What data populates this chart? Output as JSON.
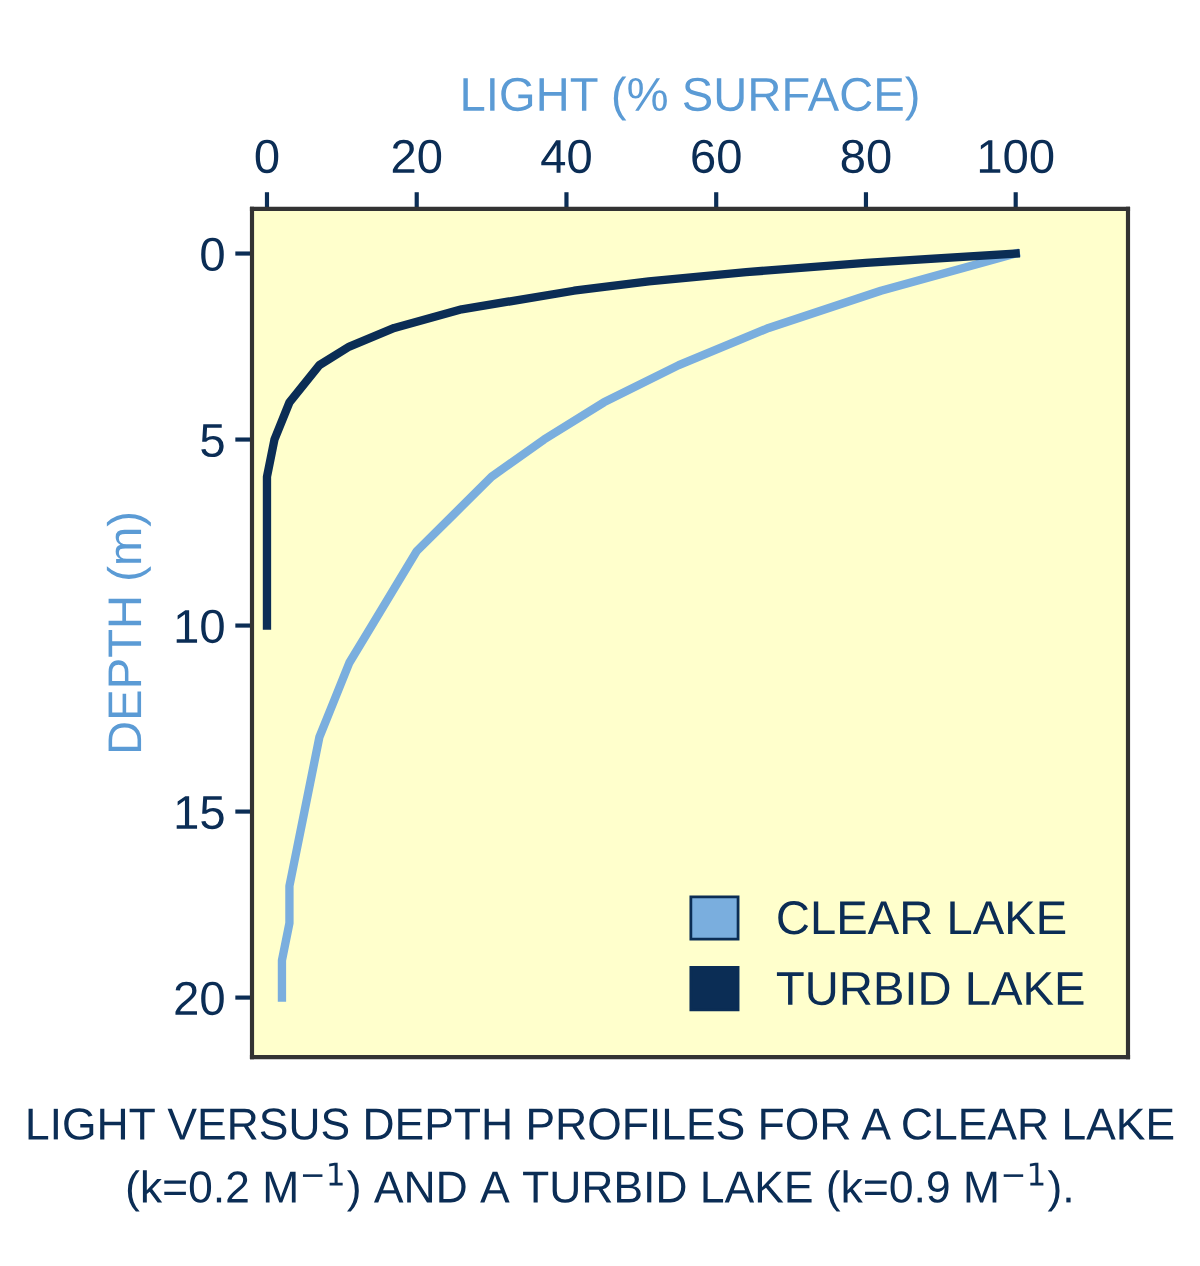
{
  "chart_data": {
    "type": "line",
    "xlabel": "LIGHT (% SURFACE)",
    "ylabel": "DEPTH (m)",
    "xlim": [
      -2,
      115
    ],
    "xticks": [
      0,
      20,
      40,
      60,
      80,
      100
    ],
    "ylim": [
      21.6,
      -1.2
    ],
    "yticks": [
      0,
      5,
      10,
      15,
      20
    ],
    "series": [
      {
        "name": "CLEAR LAKE",
        "color": "#7aaede",
        "x": [
          100,
          82,
          67,
          55,
          45,
          37,
          30,
          25,
          20,
          17,
          14,
          11,
          9,
          7,
          6,
          5,
          4,
          3,
          3,
          2,
          2
        ],
        "values": [
          0,
          1,
          2,
          3,
          4,
          5,
          6,
          7,
          8,
          9,
          10,
          11,
          12,
          13,
          14,
          15,
          16,
          17,
          18,
          19,
          20
        ]
      },
      {
        "name": "TURBID LAKE",
        "color": "#0b2d55",
        "x": [
          100,
          80,
          64,
          51,
          41,
          26,
          17,
          11,
          7,
          3,
          1,
          0,
          0,
          0
        ],
        "values": [
          0,
          0.25,
          0.5,
          0.75,
          1,
          1.5,
          2,
          2.5,
          3,
          4,
          5,
          6,
          8,
          10
        ]
      }
    ],
    "legend": "bottom right",
    "grid": false,
    "marker": "none",
    "line_style": "solid",
    "annotations": [
      "LIGHT VERSUS DEPTH PROFILES FOR A CLEAR LAKE",
      "(k=0.2 M$^{−1}$) AND A TURBID LAKE (k=0.9 M$^{−1}$)."
    ]
  }
}
